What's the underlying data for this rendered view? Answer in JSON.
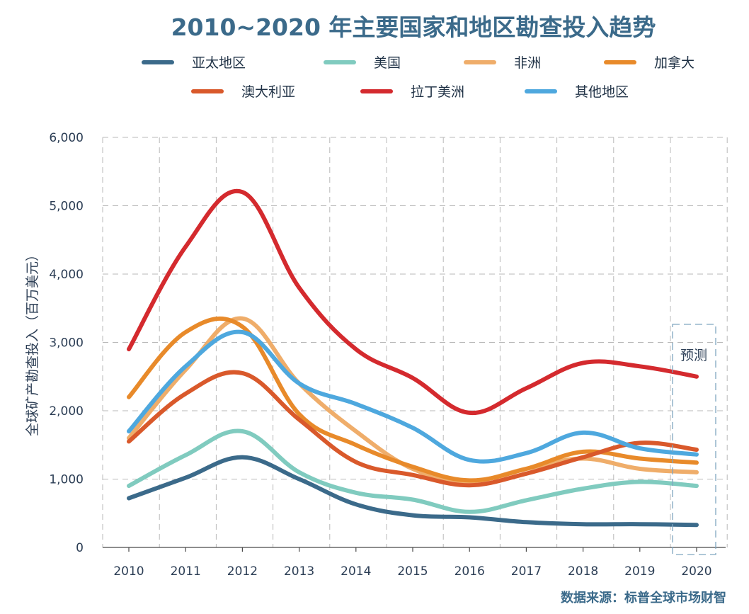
{
  "chart_data": {
    "type": "line",
    "title": "2010~2020 年主要国家和地区勘查投入趋势",
    "ylabel": "全球矿产勘查投入（百万美元）",
    "xlabel": "",
    "source": "数据来源：标普全球市场财智",
    "x": [
      "2010",
      "2011",
      "2012",
      "2013",
      "2014",
      "2015",
      "2016",
      "2017",
      "2018",
      "2019",
      "2020"
    ],
    "ylim": [
      0,
      6000
    ],
    "yticks": [
      0,
      1000,
      2000,
      3000,
      4000,
      5000,
      6000
    ],
    "ytick_labels": [
      "0",
      "1,000",
      "2,000",
      "3,000",
      "4,000",
      "5,000",
      "6,000"
    ],
    "grid": true,
    "legend_position": "top",
    "annotation": {
      "text": "预测",
      "x": "2020"
    },
    "series": [
      {
        "name": "亚太地区",
        "color": "#3b6a8a",
        "values": [
          720,
          1020,
          1320,
          1000,
          630,
          470,
          440,
          370,
          340,
          340,
          330
        ]
      },
      {
        "name": "美国",
        "color": "#80cbbf",
        "values": [
          900,
          1350,
          1700,
          1100,
          800,
          700,
          520,
          690,
          860,
          960,
          900
        ]
      },
      {
        "name": "非洲",
        "color": "#efad6a",
        "values": [
          1600,
          2600,
          3350,
          2400,
          1700,
          1150,
          970,
          1150,
          1300,
          1150,
          1100
        ]
      },
      {
        "name": "加拿大",
        "color": "#e88a2a",
        "values": [
          2200,
          3150,
          3230,
          1950,
          1500,
          1180,
          980,
          1150,
          1400,
          1300,
          1240
        ]
      },
      {
        "name": "澳大利亚",
        "color": "#d9592b",
        "values": [
          1550,
          2250,
          2550,
          1870,
          1250,
          1060,
          910,
          1080,
          1320,
          1530,
          1430
        ]
      },
      {
        "name": "拉丁美洲",
        "color": "#d42a2e",
        "values": [
          2900,
          4400,
          5200,
          3800,
          2900,
          2480,
          1970,
          2330,
          2700,
          2650,
          2500
        ]
      },
      {
        "name": "其他地区",
        "color": "#4ea8de",
        "values": [
          1700,
          2650,
          3150,
          2400,
          2100,
          1750,
          1280,
          1380,
          1680,
          1450,
          1360
        ]
      }
    ]
  }
}
